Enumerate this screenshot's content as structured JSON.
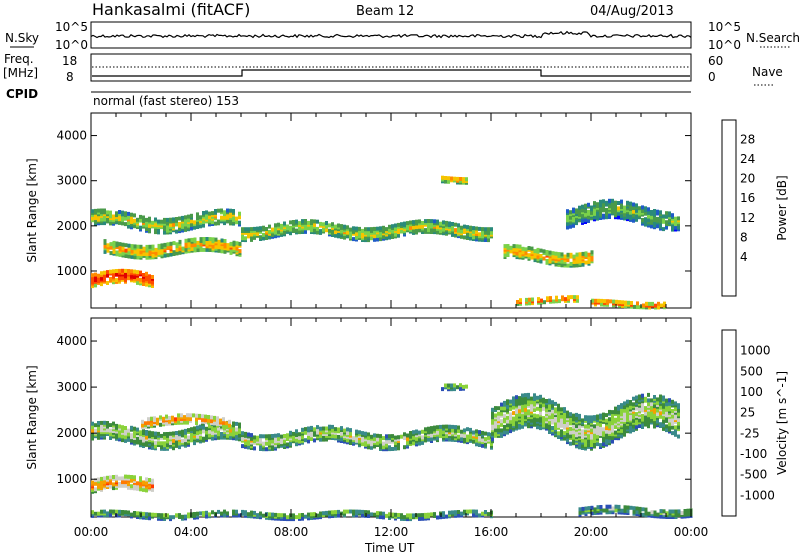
{
  "header": {
    "station": "Hankasalmi (fitACF)",
    "beam": "Beam 12",
    "date": "04/Aug/2013"
  },
  "strip": {
    "nsky_label": "N.Sky",
    "nsky_ticks": [
      "10^5",
      "10^0"
    ],
    "nsearch_label": "N.Search",
    "nsearch_ticks": [
      "10^5",
      "10^0"
    ],
    "freq_label": "Freq.",
    "freq_unit": "[MHz]",
    "freq_ticks": [
      "18",
      "8"
    ],
    "nave_label": "Nave",
    "nave_ticks": [
      "60",
      "0"
    ],
    "cpid_label": "CPID",
    "cpid_text": "normal (fast stereo) 153"
  },
  "axes": {
    "xlabel": "Time UT",
    "ylabel": "Slant Range [km]",
    "x_ticks": [
      "00:00",
      "04:00",
      "08:00",
      "12:00",
      "16:00",
      "20:00",
      "00:00"
    ]
  },
  "chart_data": [
    {
      "type": "heatmap",
      "title": "",
      "xlabel": "",
      "ylabel": "Slant Range [km]",
      "x_range_hours": [
        0,
        24
      ],
      "y_range_km": [
        180,
        4500
      ],
      "y_ticks": [
        1000,
        2000,
        3000,
        4000
      ],
      "colorbar": {
        "label": "Power [dB]",
        "ticks": [
          "28",
          "24",
          "20",
          "16",
          "12",
          "8",
          "4"
        ],
        "colors": [
          "#0000ff",
          "#1f5bc7",
          "#2a8a7a",
          "#4a9a4a",
          "#7bd24a",
          "#f6c400",
          "#ff8a00",
          "#ff4a00",
          "#e00000"
        ]
      },
      "bands": [
        {
          "start_h": 0.0,
          "end_h": 2.5,
          "center_km": 850,
          "width_km": 280,
          "level": 8
        },
        {
          "start_h": 0.0,
          "end_h": 6.0,
          "center_km": 2150,
          "width_km": 300,
          "level": 5
        },
        {
          "start_h": 0.5,
          "end_h": 6.0,
          "center_km": 1550,
          "width_km": 250,
          "level": 6
        },
        {
          "start_h": 6.0,
          "end_h": 16.0,
          "center_km": 1950,
          "width_km": 260,
          "level": 5
        },
        {
          "start_h": 14.0,
          "end_h": 15.0,
          "center_km": 3100,
          "width_km": 120,
          "level": 6
        },
        {
          "start_h": 16.5,
          "end_h": 20.0,
          "center_km": 1400,
          "width_km": 280,
          "level": 6
        },
        {
          "start_h": 19.0,
          "end_h": 23.5,
          "center_km": 2300,
          "width_km": 400,
          "level": 4
        },
        {
          "start_h": 20.0,
          "end_h": 23.0,
          "center_km": 320,
          "width_km": 100,
          "level": 7
        },
        {
          "start_h": 17.0,
          "end_h": 19.5,
          "center_km": 400,
          "width_km": 100,
          "level": 7
        }
      ]
    },
    {
      "type": "heatmap",
      "title": "",
      "xlabel": "Time UT",
      "ylabel": "Slant Range [km]",
      "x_range_hours": [
        0,
        24
      ],
      "y_range_km": [
        180,
        4500
      ],
      "y_ticks": [
        1000,
        2000,
        3000,
        4000
      ],
      "colorbar": {
        "label": "Velocity [m s^-1]",
        "ticks": [
          "1000",
          "500",
          "100",
          "25",
          "-25",
          "-100",
          "-500",
          "-1000"
        ],
        "colors": [
          "#2b4fb5",
          "#3a8a8a",
          "#3c8a3c",
          "#8ad23a",
          "#cfcfc9",
          "#f5a000",
          "#ff7a00",
          "#ff3a00",
          "#e00000"
        ]
      },
      "bands": [
        {
          "start_h": 0.0,
          "end_h": 2.5,
          "center_km": 900,
          "width_km": 260,
          "level": 6
        },
        {
          "start_h": 0.0,
          "end_h": 6.0,
          "center_km": 2000,
          "width_km": 350,
          "level": 4
        },
        {
          "start_h": 6.0,
          "end_h": 16.0,
          "center_km": 1950,
          "width_km": 300,
          "level": 4
        },
        {
          "start_h": 2.0,
          "end_h": 5.5,
          "center_km": 2300,
          "width_km": 180,
          "level": 6
        },
        {
          "start_h": 16.0,
          "end_h": 23.5,
          "center_km": 2300,
          "width_km": 700,
          "level": 4
        },
        {
          "start_h": 14.0,
          "end_h": 15.0,
          "center_km": 3100,
          "width_km": 120,
          "level": 3
        },
        {
          "start_h": 19.5,
          "end_h": 24.0,
          "center_km": 350,
          "width_km": 150,
          "level": 3
        },
        {
          "start_h": 0.0,
          "end_h": 16.0,
          "center_km": 280,
          "width_km": 120,
          "level": 3
        }
      ]
    }
  ]
}
